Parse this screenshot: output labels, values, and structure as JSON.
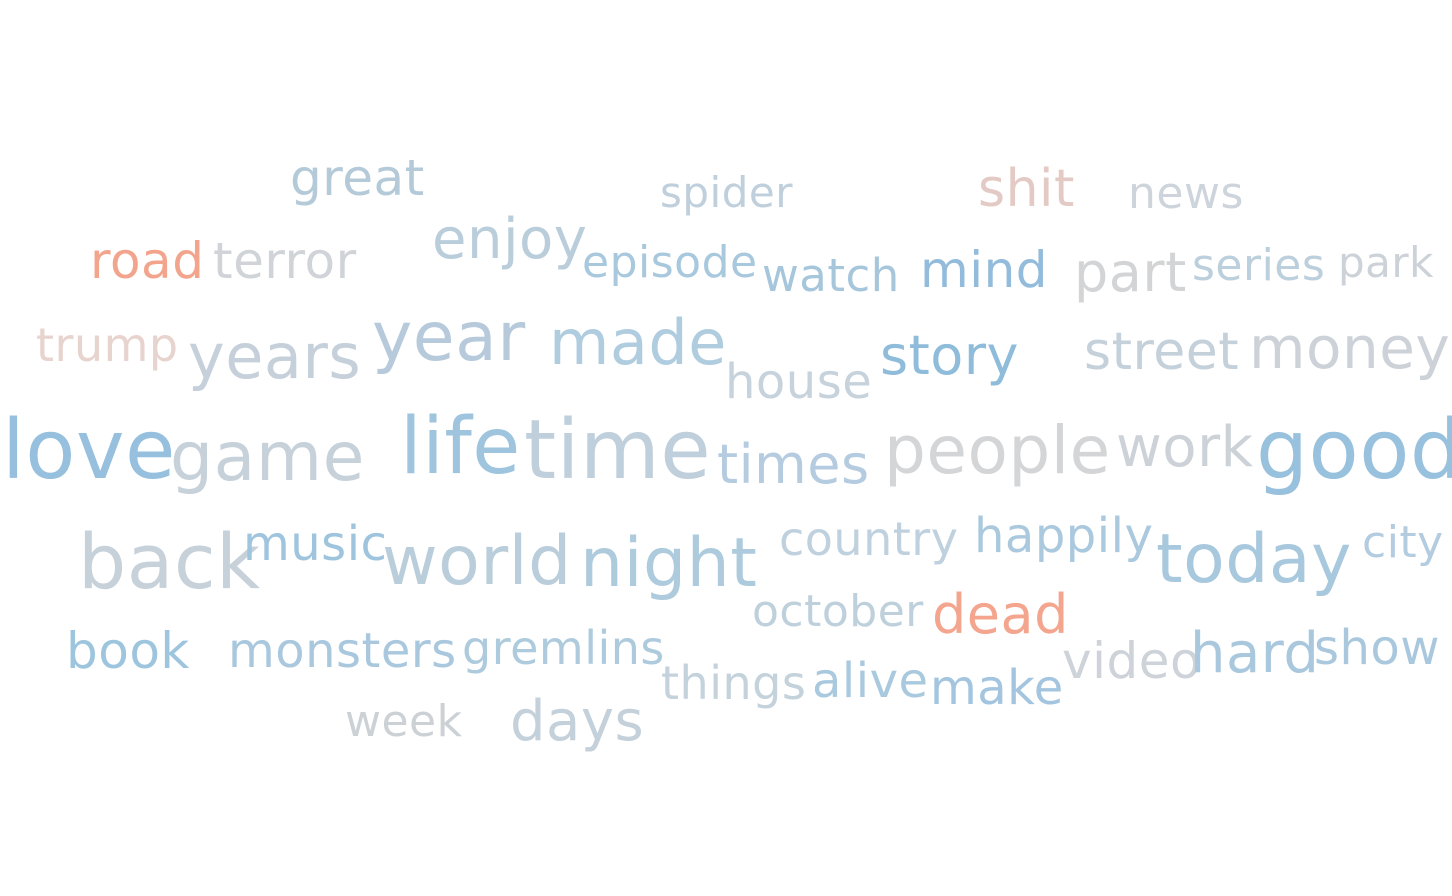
{
  "words": [
    {
      "id": "great",
      "text": "great",
      "color": "#b4cad9"
    },
    {
      "id": "spider",
      "text": "spider",
      "color": "#bfcfdc"
    },
    {
      "id": "shit",
      "text": "shit",
      "color": "#e3cac4"
    },
    {
      "id": "news",
      "text": "news",
      "color": "#ced4dc"
    },
    {
      "id": "road",
      "text": "road",
      "color": "#f2a48c"
    },
    {
      "id": "terror",
      "text": "terror",
      "color": "#d0d4d8"
    },
    {
      "id": "enjoy",
      "text": "enjoy",
      "color": "#bacddb"
    },
    {
      "id": "episode",
      "text": "episode",
      "color": "#a8c8de"
    },
    {
      "id": "watch",
      "text": "watch",
      "color": "#a6c6db"
    },
    {
      "id": "mind",
      "text": "mind",
      "color": "#93bcdc"
    },
    {
      "id": "part",
      "text": "part",
      "color": "#d2d4d6"
    },
    {
      "id": "series",
      "text": "series",
      "color": "#bccfdd"
    },
    {
      "id": "park",
      "text": "park",
      "color": "#ccd2d8"
    },
    {
      "id": "trump",
      "text": "trump",
      "color": "#e8d4ce"
    },
    {
      "id": "years",
      "text": "years",
      "color": "#c5d0da"
    },
    {
      "id": "year",
      "text": "year",
      "color": "#b6cadb"
    },
    {
      "id": "made",
      "text": "made",
      "color": "#b0cde0"
    },
    {
      "id": "house",
      "text": "house",
      "color": "#c6d2dc"
    },
    {
      "id": "story",
      "text": "story",
      "color": "#8fbcdb"
    },
    {
      "id": "street",
      "text": "street",
      "color": "#c4d0da"
    },
    {
      "id": "money",
      "text": "money",
      "color": "#ccd2d8"
    },
    {
      "id": "love",
      "text": "love",
      "color": "#96c0de"
    },
    {
      "id": "game",
      "text": "game",
      "color": "#c7d1da"
    },
    {
      "id": "life",
      "text": "life",
      "color": "#9ec4de"
    },
    {
      "id": "time",
      "text": "time",
      "color": "#bfcfdc"
    },
    {
      "id": "times",
      "text": "times",
      "color": "#b5cce0"
    },
    {
      "id": "people",
      "text": "people",
      "color": "#d3d5d7"
    },
    {
      "id": "work",
      "text": "work",
      "color": "#ccd2d8"
    },
    {
      "id": "good",
      "text": "good",
      "color": "#98c1de"
    },
    {
      "id": "back",
      "text": "back",
      "color": "#c7d1da"
    },
    {
      "id": "music",
      "text": "music",
      "color": "#9fc5de"
    },
    {
      "id": "world",
      "text": "world",
      "color": "#b9cddb"
    },
    {
      "id": "night",
      "text": "night",
      "color": "#aecbde"
    },
    {
      "id": "country",
      "text": "country",
      "color": "#bfd1de"
    },
    {
      "id": "happily",
      "text": "happily",
      "color": "#abc9de"
    },
    {
      "id": "today",
      "text": "today",
      "color": "#a8c8de"
    },
    {
      "id": "city",
      "text": "city",
      "color": "#b4cce0"
    },
    {
      "id": "october",
      "text": "october",
      "color": "#bed0dc"
    },
    {
      "id": "dead",
      "text": "dead",
      "color": "#f4a58e"
    },
    {
      "id": "book",
      "text": "book",
      "color": "#9ec5de"
    },
    {
      "id": "monsters",
      "text": "monsters",
      "color": "#a9c8de"
    },
    {
      "id": "gremlins",
      "text": "gremlins",
      "color": "#aecbde"
    },
    {
      "id": "things",
      "text": "things",
      "color": "#c4d2dc"
    },
    {
      "id": "alive",
      "text": "alive",
      "color": "#a9c9de"
    },
    {
      "id": "make",
      "text": "make",
      "color": "#a3c5df"
    },
    {
      "id": "video",
      "text": "video",
      "color": "#cdd3d8"
    },
    {
      "id": "hard",
      "text": "hard",
      "color": "#a9c8de"
    },
    {
      "id": "show",
      "text": "show",
      "color": "#a9c8de"
    },
    {
      "id": "week",
      "text": "week",
      "color": "#ccd1d6"
    },
    {
      "id": "days",
      "text": "days",
      "color": "#c4d0da"
    }
  ]
}
